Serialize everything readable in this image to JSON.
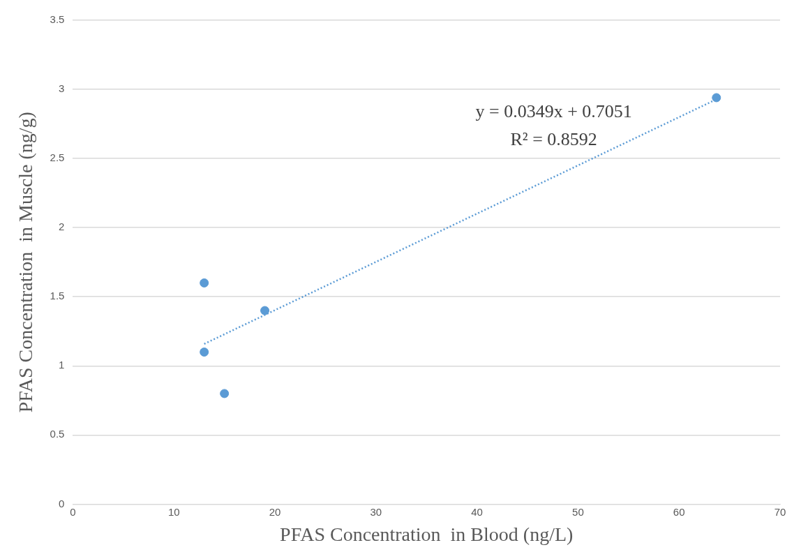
{
  "chart_data": {
    "type": "scatter",
    "xlabel": "PFAS Concentration  in Blood (ng/L)",
    "ylabel": "PFAS Concentration  in Muscle (ng/g)",
    "series": [
      {
        "type": "scatter",
        "color": "#5b9bd5",
        "x": [
          13,
          13,
          15,
          19,
          63.7
        ],
        "values": [
          1.6,
          1.1,
          0.8,
          1.4,
          2.94
        ],
        "marker": "circle"
      },
      {
        "type": "line",
        "color": "#5b9bd5",
        "x": [
          13,
          63.7
        ],
        "values": [
          1.159,
          2.928
        ],
        "marker": "none",
        "line_style": "dotted"
      }
    ],
    "annotations": [
      "y = 0.0349x + 0.7051",
      "R² = 0.8592"
    ],
    "xlim": [
      0,
      70
    ],
    "xticks": [
      0,
      10,
      20,
      30,
      40,
      50,
      60,
      70
    ],
    "ylim": [
      0,
      3.5
    ],
    "yticks": [
      0,
      0.5,
      1,
      1.5,
      2,
      2.5,
      3,
      3.5
    ],
    "grid": "y",
    "legend": false
  }
}
